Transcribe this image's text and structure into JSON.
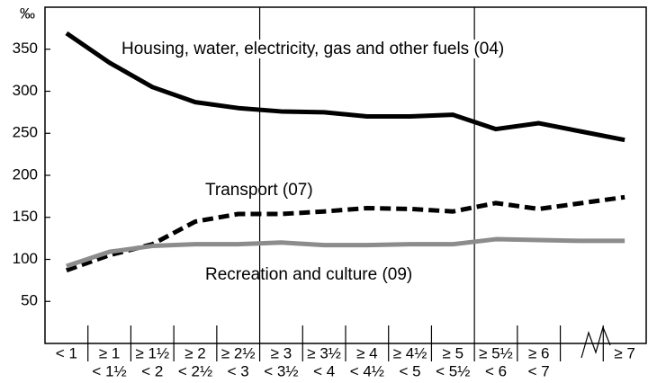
{
  "chart_data": {
    "type": "line",
    "ylabel": "‰",
    "categories": [
      [
        "< 1"
      ],
      [
        "≥ 1",
        "< 1½"
      ],
      [
        "≥ 1½",
        "< 2"
      ],
      [
        "≥ 2",
        "< 2½"
      ],
      [
        "≥ 2½",
        "< 3"
      ],
      [
        "≥ 3",
        "< 3½"
      ],
      [
        "≥ 3½",
        "< 4"
      ],
      [
        "≥ 4",
        "< 4½"
      ],
      [
        "≥ 4½",
        "< 5"
      ],
      [
        "≥ 5",
        "< 5½"
      ],
      [
        "≥ 5½",
        "< 6"
      ],
      [
        "≥ 6",
        "< 7"
      ],
      null,
      [
        "≥ 7"
      ]
    ],
    "series": [
      {
        "name": "Housing, water, electricity, gas and other fuels (04)",
        "color": "#000000",
        "dash": false,
        "values": [
          369,
          334,
          305,
          287,
          280,
          276,
          275,
          270,
          270,
          272,
          255,
          262,
          252,
          242
        ]
      },
      {
        "name": "Transport (07)",
        "color": "#000000",
        "dash": true,
        "values": [
          87,
          105,
          118,
          145,
          154,
          154,
          157,
          161,
          160,
          157,
          167,
          160,
          167,
          174
        ]
      },
      {
        "name": "Recreation and culture (09)",
        "color": "#8c8c8c",
        "dash": false,
        "values": [
          92,
          109,
          116,
          118,
          118,
          120,
          117,
          117,
          118,
          118,
          124,
          123,
          122,
          122
        ]
      }
    ],
    "ylim": [
      0,
      400
    ],
    "yticks": [
      50,
      100,
      150,
      200,
      250,
      300,
      350
    ],
    "grid": false
  }
}
